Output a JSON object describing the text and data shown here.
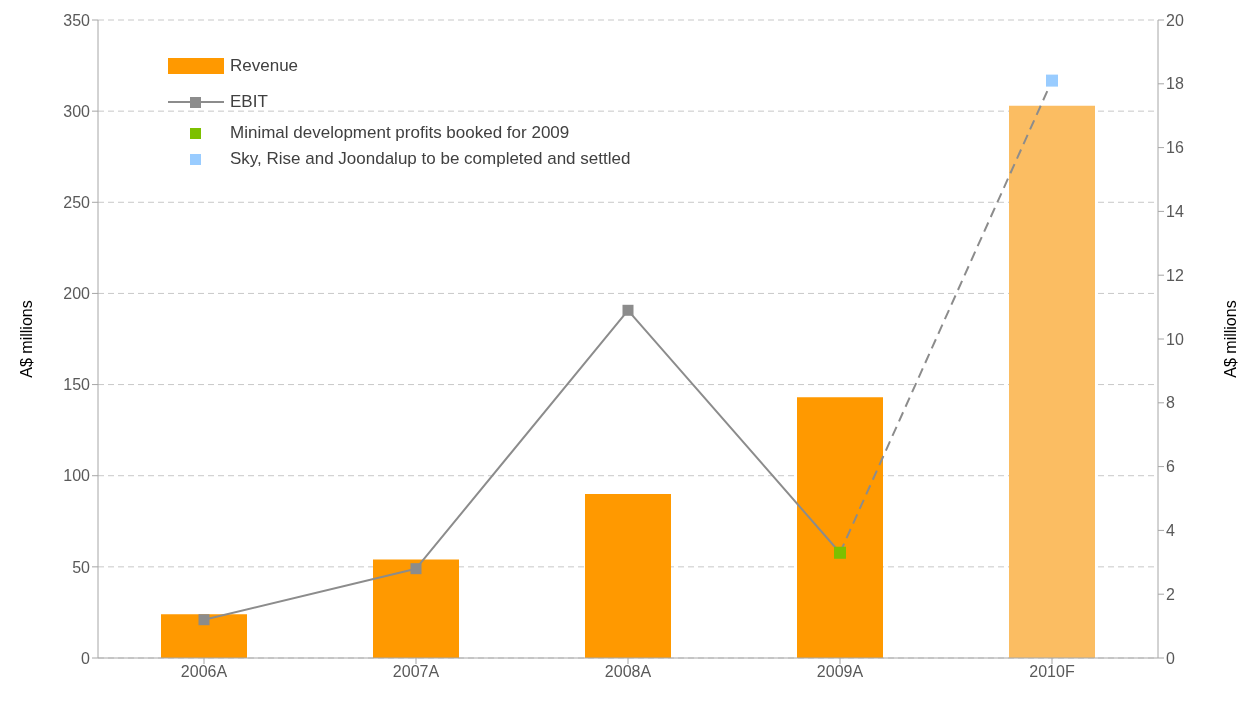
{
  "chart_data": {
    "type": "bar",
    "categories": [
      "2006A",
      "2007A",
      "2008A",
      "2009A",
      "2010F"
    ],
    "ylabel": "A$ millions",
    "y2label": "A$ millions",
    "ylim": [
      0,
      350
    ],
    "yticks": [
      0,
      50,
      100,
      150,
      200,
      250,
      300,
      350
    ],
    "y2lim": [
      0,
      20
    ],
    "y2ticks": [
      0,
      2,
      4,
      6,
      8,
      10,
      12,
      14,
      16,
      18,
      20
    ],
    "grid": "y",
    "legend": "top left",
    "series": [
      {
        "name": "Revenue",
        "colors": [
          "#ff9900",
          "#ff9900",
          "#ff9900",
          "#ff9900",
          "#fbbd62"
        ],
        "values": [
          24,
          54,
          90,
          143,
          303
        ]
      },
      {
        "name": "EBIT",
        "type": "line",
        "axis": "y2",
        "color": "#8c8c8c",
        "marker": "square",
        "line_style": "solid",
        "values": [
          1.2,
          2.8,
          10.9,
          3.3,
          null
        ]
      },
      {
        "type": "line",
        "axis": "y2",
        "color": "#8c8c8c",
        "marker": "none",
        "line_style": "dashed",
        "values": [
          null,
          null,
          null,
          3.3,
          18.1
        ]
      },
      {
        "name": "Minimal development profits booked for 2009",
        "type": "scatter",
        "axis": "y2",
        "color": "#7dc000",
        "marker": "square",
        "values": [
          null,
          null,
          null,
          3.3,
          null
        ]
      },
      {
        "name": "Sky, Rise and Joondalup to be completed and settled",
        "type": "scatter",
        "axis": "y2",
        "color": "#99ccff",
        "marker": "square",
        "values": [
          null,
          null,
          null,
          null,
          18.1
        ]
      }
    ]
  }
}
